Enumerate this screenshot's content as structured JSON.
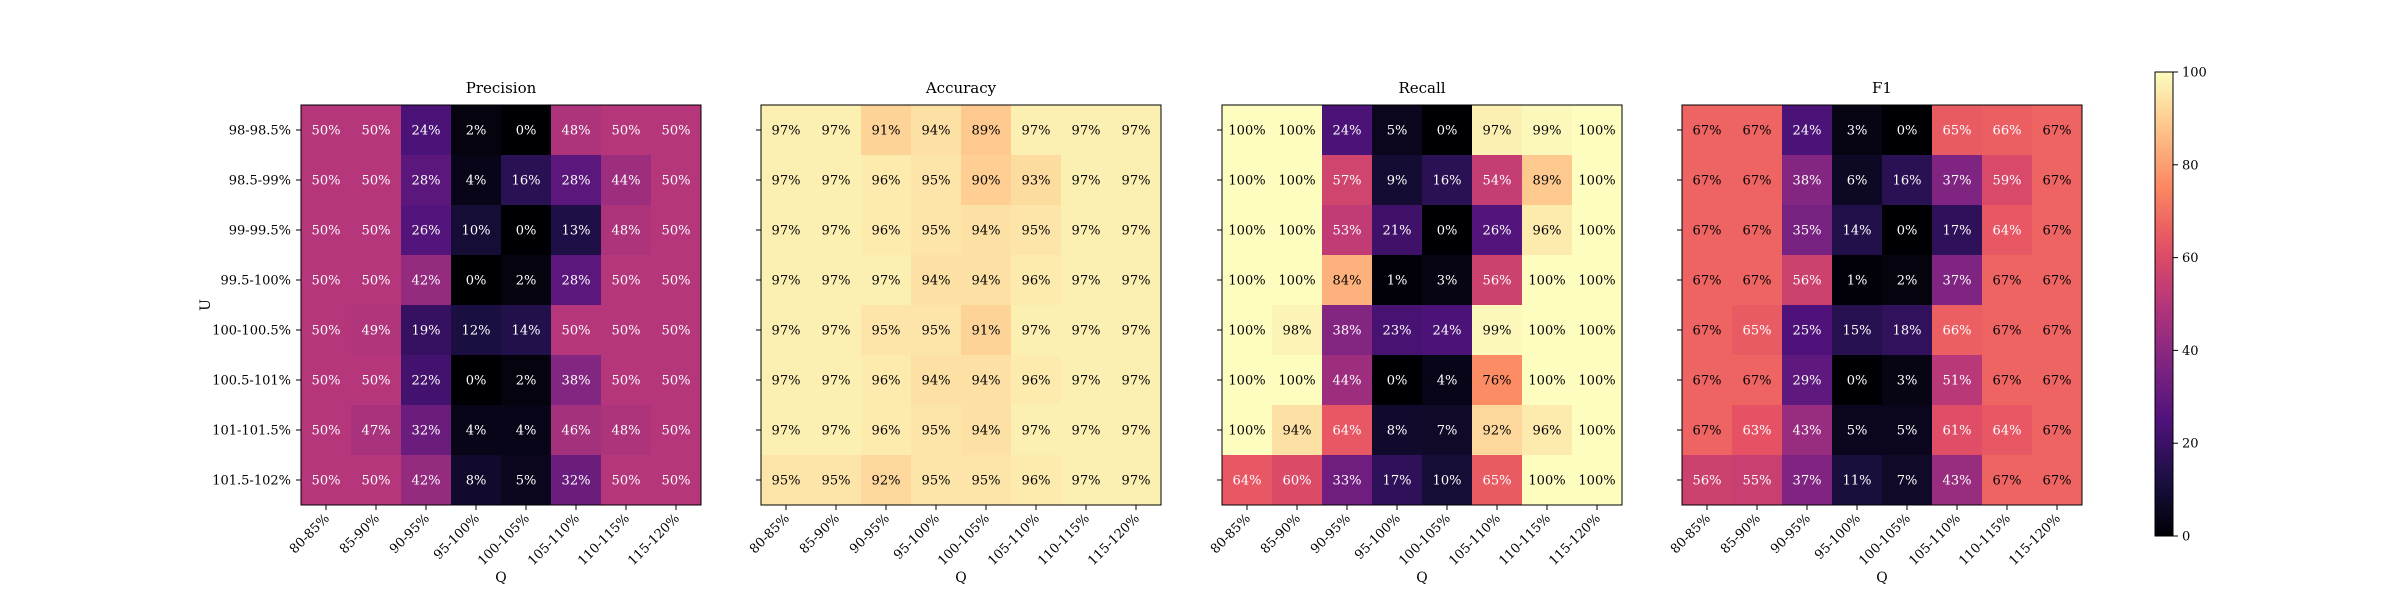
{
  "chart_data": {
    "type": "heatmap",
    "colormap": "magma",
    "x_tick_labels": [
      "80-85%",
      "85-90%",
      "90-95%",
      "95-100%",
      "100-105%",
      "105-110%",
      "110-115%",
      "115-120%"
    ],
    "y_tick_labels": [
      "98-98.5%",
      "98.5-99%",
      "99-99.5%",
      "99.5-100%",
      "100-100.5%",
      "100.5-101%",
      "101-101.5%",
      "101.5-102%"
    ],
    "xlabel": "Q",
    "ylabel": "U",
    "value_format": "percent",
    "panels": [
      {
        "title": "Precision",
        "values": [
          [
            50,
            50,
            24,
            2,
            0,
            48,
            50,
            50
          ],
          [
            50,
            50,
            28,
            4,
            16,
            28,
            44,
            50
          ],
          [
            50,
            50,
            26,
            10,
            0,
            13,
            48,
            50
          ],
          [
            50,
            50,
            42,
            0,
            2,
            28,
            50,
            50
          ],
          [
            50,
            49,
            19,
            12,
            14,
            50,
            50,
            50
          ],
          [
            50,
            50,
            22,
            0,
            2,
            38,
            50,
            50
          ],
          [
            50,
            47,
            32,
            4,
            4,
            46,
            48,
            50
          ],
          [
            50,
            50,
            42,
            8,
            5,
            32,
            50,
            50
          ]
        ]
      },
      {
        "title": "Accuracy",
        "values": [
          [
            97,
            97,
            91,
            94,
            89,
            97,
            97,
            97
          ],
          [
            97,
            97,
            96,
            95,
            90,
            93,
            97,
            97
          ],
          [
            97,
            97,
            96,
            95,
            94,
            95,
            97,
            97
          ],
          [
            97,
            97,
            97,
            94,
            94,
            96,
            97,
            97
          ],
          [
            97,
            97,
            95,
            95,
            91,
            97,
            97,
            97
          ],
          [
            97,
            97,
            96,
            94,
            94,
            96,
            97,
            97
          ],
          [
            97,
            97,
            96,
            95,
            94,
            97,
            97,
            97
          ],
          [
            95,
            95,
            92,
            95,
            95,
            96,
            97,
            97
          ]
        ]
      },
      {
        "title": "Recall",
        "values": [
          [
            100,
            100,
            24,
            5,
            0,
            97,
            99,
            100
          ],
          [
            100,
            100,
            57,
            9,
            16,
            54,
            89,
            100
          ],
          [
            100,
            100,
            53,
            21,
            0,
            26,
            96,
            100
          ],
          [
            100,
            100,
            84,
            1,
            3,
            56,
            100,
            100
          ],
          [
            100,
            98,
            38,
            23,
            24,
            99,
            100,
            100
          ],
          [
            100,
            100,
            44,
            0,
            4,
            76,
            100,
            100
          ],
          [
            100,
            94,
            64,
            8,
            7,
            92,
            96,
            100
          ],
          [
            64,
            60,
            33,
            17,
            10,
            65,
            100,
            100
          ]
        ]
      },
      {
        "title": "F1",
        "values": [
          [
            67,
            67,
            24,
            3,
            0,
            65,
            66,
            67
          ],
          [
            67,
            67,
            38,
            6,
            16,
            37,
            59,
            67
          ],
          [
            67,
            67,
            35,
            14,
            0,
            17,
            64,
            67
          ],
          [
            67,
            67,
            56,
            1,
            2,
            37,
            67,
            67
          ],
          [
            67,
            65,
            25,
            15,
            18,
            66,
            67,
            67
          ],
          [
            67,
            67,
            29,
            0,
            3,
            51,
            67,
            67
          ],
          [
            67,
            63,
            43,
            5,
            5,
            61,
            64,
            67
          ],
          [
            56,
            55,
            37,
            11,
            7,
            43,
            67,
            67
          ]
        ]
      }
    ],
    "colorbar": {
      "range": [
        0,
        100
      ],
      "ticks": [
        "0",
        "20",
        "40",
        "60",
        "80",
        "100"
      ]
    }
  }
}
